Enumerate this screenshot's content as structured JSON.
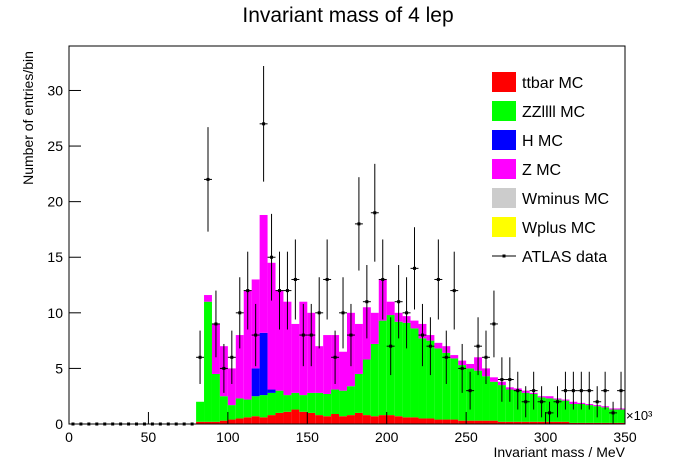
{
  "chart_data": {
    "type": "histogram",
    "title": "Invariant mass of 4 lep",
    "x_label": "Invariant mass / MeV",
    "y_label": "Number of entries/bin",
    "x_exponent": "×10³",
    "xlim": [
      0,
      350
    ],
    "ylim": [
      0,
      34
    ],
    "xticks": [
      0,
      50,
      100,
      150,
      200,
      250,
      300,
      350
    ],
    "yticks": [
      0,
      5,
      10,
      15,
      20,
      25,
      30
    ],
    "stacked": true,
    "legend": "upper right",
    "bins": [
      0,
      5,
      10,
      15,
      20,
      25,
      30,
      35,
      40,
      45,
      50,
      55,
      60,
      65,
      70,
      75,
      80,
      85,
      90,
      95,
      100,
      105,
      110,
      115,
      120,
      125,
      130,
      135,
      140,
      145,
      150,
      155,
      160,
      165,
      170,
      175,
      180,
      185,
      190,
      195,
      200,
      205,
      210,
      215,
      220,
      225,
      230,
      235,
      240,
      245,
      250,
      255,
      260,
      265,
      270,
      275,
      280,
      285,
      290,
      295,
      300,
      305,
      310,
      315,
      320,
      325,
      330,
      335,
      340,
      345,
      350
    ],
    "series": [
      {
        "name": "ttbar MC",
        "color": "#ff0000",
        "values": [
          0,
          0,
          0,
          0,
          0,
          0,
          0,
          0,
          0,
          0,
          0,
          0,
          0,
          0,
          0,
          0,
          0.2,
          0.2,
          0.2,
          0.3,
          0.4,
          0.5,
          0.6,
          0.7,
          0.6,
          0.8,
          1,
          1.1,
          1.3,
          1.1,
          1,
          0.8,
          0.7,
          0.9,
          0.7,
          0.8,
          1,
          0.8,
          0.7,
          0.8,
          0.8,
          0.7,
          0.6,
          0.6,
          0.5,
          0.5,
          0.4,
          0.4,
          0.4,
          0.3,
          0.3,
          0.3,
          0.3,
          0.3,
          0.2,
          0.2,
          0.2,
          0.2,
          0.2,
          0.2,
          0.2,
          0.2,
          0.2,
          0.1,
          0.1,
          0.1,
          0.1,
          0.1,
          0.1,
          0.1
        ]
      },
      {
        "name": "ZZllll MC",
        "color": "#00ff00",
        "values": [
          0,
          0,
          0,
          0,
          0,
          0,
          0,
          0,
          0,
          0,
          0,
          0,
          0,
          0,
          0,
          0,
          1.8,
          10.8,
          4.3,
          2.2,
          1.3,
          1.8,
          1.6,
          1.8,
          2,
          2,
          2,
          1.5,
          1.5,
          1.5,
          1.8,
          2,
          2,
          2.2,
          2.3,
          2.6,
          3.5,
          5,
          6.5,
          8.5,
          9,
          8.5,
          8.5,
          8,
          7.2,
          7,
          6.4,
          6,
          5.5,
          5,
          4.7,
          4.5,
          4,
          3.5,
          3.3,
          2.9,
          2.8,
          2.6,
          2.5,
          2.2,
          2.1,
          2,
          1.9,
          1.7,
          1.7,
          1.6,
          1.5,
          1.4,
          1.2,
          1.2
        ]
      },
      {
        "name": "H MC",
        "color": "#0000ff",
        "values": [
          0,
          0,
          0,
          0,
          0,
          0,
          0,
          0,
          0,
          0,
          0,
          0,
          0,
          0,
          0,
          0,
          0,
          0,
          0,
          0,
          0,
          0,
          0,
          2.5,
          5.6,
          0.3,
          0,
          0,
          0,
          0,
          0,
          0,
          0,
          0,
          0,
          0,
          0,
          0,
          0,
          0,
          0,
          0,
          0,
          0,
          0,
          0,
          0,
          0,
          0,
          0,
          0,
          0,
          0,
          0,
          0,
          0,
          0,
          0,
          0,
          0,
          0,
          0,
          0,
          0,
          0,
          0,
          0,
          0,
          0,
          0
        ]
      },
      {
        "name": "Z MC",
        "color": "#ff00ff",
        "values": [
          0,
          0,
          0,
          0,
          0,
          0,
          0,
          0,
          0,
          0,
          0,
          0,
          0,
          0,
          0,
          0,
          0,
          0.6,
          4.5,
          4.5,
          3.3,
          5.7,
          9.8,
          8,
          10.6,
          11.4,
          9,
          8.4,
          6.2,
          8.4,
          7.2,
          4.2,
          5.3,
          4.9,
          3.5,
          6.6,
          4.5,
          4.7,
          2.8,
          3.7,
          1.2,
          0.8,
          0.6,
          0.7,
          1.3,
          0.5,
          0.5,
          0.6,
          0.3,
          0.4,
          0.4,
          1.2,
          0.7,
          0.4,
          0.3,
          0.2,
          0.2,
          0.2,
          0.1,
          0.1,
          0.2,
          0.1,
          0.1,
          0.2,
          0.1,
          0.1,
          0.1,
          0.1,
          0.1,
          0.1
        ]
      },
      {
        "name": "Wminus MC",
        "color": "#cccccc",
        "values": [
          0,
          0,
          0,
          0,
          0,
          0,
          0,
          0,
          0,
          0,
          0,
          0,
          0,
          0,
          0,
          0,
          0,
          0,
          0,
          0,
          0,
          0,
          0,
          0,
          0,
          0,
          0,
          0,
          0,
          0,
          0,
          0,
          0,
          0,
          0,
          0,
          0,
          0,
          0,
          0,
          0,
          0,
          0,
          0,
          0,
          0,
          0,
          0,
          0,
          0,
          0,
          0,
          0,
          0,
          0,
          0,
          0,
          0,
          0,
          0,
          0,
          0,
          0,
          0,
          0,
          0,
          0,
          0,
          0,
          0
        ]
      },
      {
        "name": "Wplus MC",
        "color": "#ffff00",
        "values": [
          0,
          0,
          0,
          0,
          0,
          0,
          0,
          0,
          0,
          0,
          0,
          0,
          0,
          0,
          0,
          0,
          0,
          0,
          0,
          0,
          0,
          0,
          0,
          0,
          0,
          0,
          0,
          0,
          0,
          0,
          0,
          0,
          0,
          0,
          0,
          0,
          0,
          0,
          0,
          0,
          0,
          0,
          0,
          0,
          0,
          0,
          0,
          0,
          0,
          0,
          0,
          0,
          0,
          0,
          0,
          0,
          0,
          0,
          0,
          0,
          0,
          0,
          0,
          0,
          0,
          0,
          0,
          0,
          0,
          0
        ]
      }
    ],
    "data": {
      "name": "ATLAS data",
      "color": "#000000",
      "values": [
        0,
        0,
        0,
        0,
        0,
        0,
        0,
        0,
        0,
        0,
        0,
        0,
        0,
        0,
        0,
        0,
        6,
        22,
        9,
        5,
        6,
        10,
        12,
        8,
        27,
        15,
        12,
        12,
        13,
        8,
        8,
        10,
        13,
        6,
        10,
        8,
        18,
        11,
        19,
        13,
        7,
        11,
        10,
        14,
        8,
        7,
        13,
        6,
        12,
        5,
        3,
        7,
        6,
        9,
        4,
        4,
        3,
        2,
        3,
        2,
        1,
        2,
        3,
        3,
        3,
        3,
        2,
        3,
        1,
        3
      ],
      "errors": [
        0,
        0,
        0,
        0,
        0,
        0,
        0,
        0,
        0,
        0,
        0,
        0,
        0,
        0,
        0,
        0,
        2.4,
        4.7,
        3,
        2.2,
        2.4,
        3.2,
        3.5,
        2.8,
        5.2,
        3.9,
        3.5,
        3.5,
        3.6,
        2.8,
        2.8,
        3.2,
        3.6,
        2.4,
        3.2,
        2.8,
        4.2,
        3.3,
        4.4,
        3.6,
        2.6,
        3.3,
        3.2,
        3.7,
        2.8,
        2.6,
        3.6,
        2.4,
        3.5,
        2.2,
        1.7,
        2.6,
        2.4,
        3,
        2,
        2,
        1.7,
        1.4,
        1.7,
        1.4,
        1,
        1.4,
        1.7,
        1.7,
        1.7,
        1.7,
        1.4,
        1.7,
        1,
        1.7
      ]
    }
  }
}
